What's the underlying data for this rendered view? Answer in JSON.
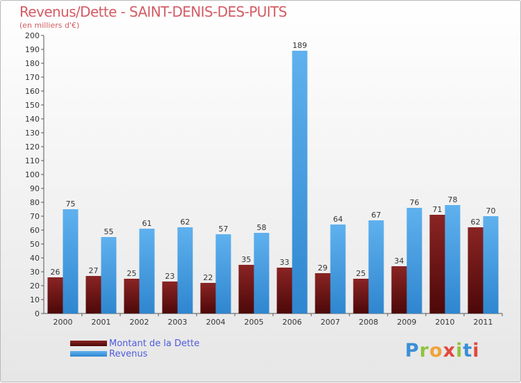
{
  "chart_data": {
    "type": "bar",
    "title": "Revenus/Dette - SAINT-DENIS-DES-PUITS",
    "subtitle": "(en milliers d'€)",
    "categories": [
      "2000",
      "2001",
      "2002",
      "2003",
      "2004",
      "2005",
      "2006",
      "2007",
      "2008",
      "2009",
      "2010",
      "2011"
    ],
    "series": [
      {
        "name": "Montant de la Dette",
        "color": "#7a1a1a",
        "values": [
          26,
          27,
          25,
          23,
          22,
          35,
          33,
          29,
          25,
          34,
          71,
          62
        ]
      },
      {
        "name": "Revenus",
        "color": "#4aa0e2",
        "values": [
          75,
          55,
          61,
          62,
          57,
          58,
          189,
          64,
          67,
          76,
          78,
          70
        ]
      }
    ],
    "ylim": [
      0,
      200
    ],
    "ytick_step": 10,
    "grid": false,
    "legend_position": "bottom-left"
  },
  "logo": {
    "letters": [
      "P",
      "r",
      "o",
      "x",
      "i",
      "t",
      "i"
    ],
    "colors": [
      "#3c8fd6",
      "#8fc43c",
      "#f0a23a",
      "#e2483c",
      "#8fc43c",
      "#3c8fd6",
      "#e2483c"
    ]
  }
}
